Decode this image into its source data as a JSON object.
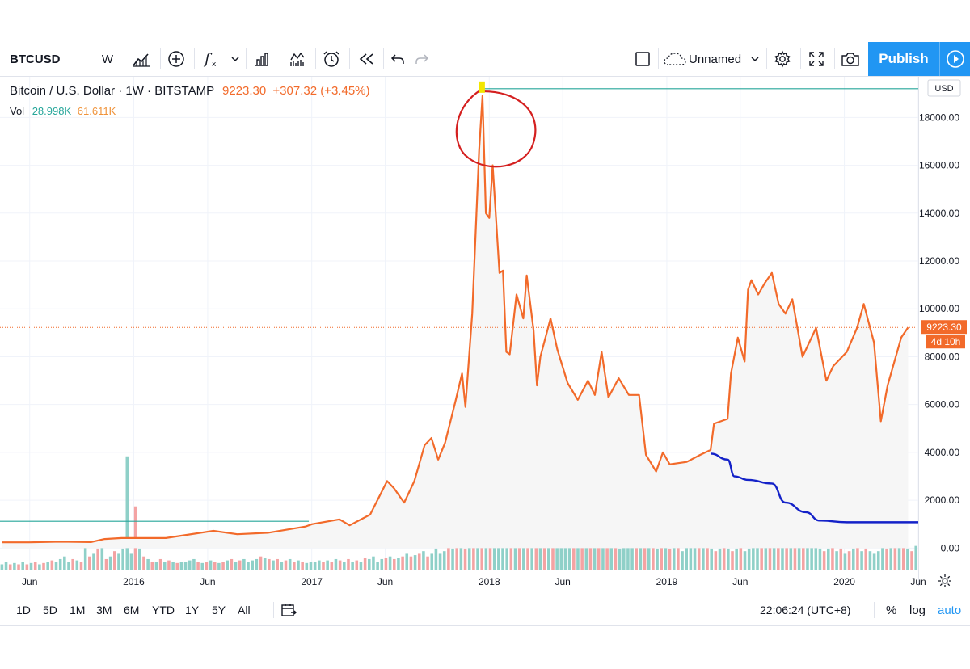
{
  "toolbar": {
    "symbol": "BTCUSD",
    "interval": "W",
    "layout_name": "Unnamed",
    "publish_label": "Publish",
    "icons": [
      "bar-style-icon",
      "add-compare-icon",
      "indicators-icon",
      "chevron-down-icon",
      "financials-icon",
      "templates-icon",
      "alert-icon",
      "replay-icon",
      "undo-icon",
      "redo-icon",
      "select-layout-icon",
      "cloud-icon",
      "settings-icon",
      "fullscreen-icon",
      "camera-icon",
      "play-icon"
    ]
  },
  "legend": {
    "title": "Bitcoin / U.S. Dollar · 1W · BITSTAMP",
    "price": "9223.30",
    "change": "+307.32 (+3.45%)",
    "vol_label": "Vol",
    "vol_ma": "28.998K",
    "vol_value": "61.611K"
  },
  "price_axis": {
    "currency": "USD",
    "ticks": [
      "18000.00",
      "16000.00",
      "14000.00",
      "12000.00",
      "10000.00",
      "8000.00",
      "6000.00",
      "4000.00",
      "2000.00",
      "0.00"
    ],
    "last_price": "9223.30",
    "countdown": "4d 10h"
  },
  "time_axis": {
    "ticks": [
      "Jun",
      "2016",
      "Jun",
      "2017",
      "Jun",
      "2018",
      "Jun",
      "2019",
      "Jun",
      "2020",
      "Jun"
    ]
  },
  "bottom": {
    "ranges": [
      "1D",
      "5D",
      "1M",
      "3M",
      "6M",
      "YTD",
      "1Y",
      "5Y",
      "All"
    ],
    "clock": "22:06:24 (UTC+8)",
    "percent": "%",
    "log": "log",
    "auto": "auto"
  },
  "colors": {
    "price_line": "#f26a2a",
    "volume_up": "#8fd0c8",
    "volume_down": "#f4a3a3",
    "teal_line": "#26a69a",
    "blue_curve": "#1422c8",
    "circle_annotation": "#d42020",
    "accent": "#2196f3"
  },
  "chart_data": {
    "type": "line",
    "title": "Bitcoin / U.S. Dollar · 1W · BITSTAMP",
    "y_unit": "USD",
    "ylim": [
      -900,
      19700
    ],
    "x_range": [
      "2015-04",
      "2020-06"
    ],
    "series": [
      {
        "name": "BTCUSD",
        "points": [
          [
            "2015-04-06",
            240
          ],
          [
            "2015-06-01",
            240
          ],
          [
            "2015-08-03",
            270
          ],
          [
            "2015-10-05",
            250
          ],
          [
            "2015-11-02",
            380
          ],
          [
            "2015-12-07",
            420
          ],
          [
            "2016-03-07",
            420
          ],
          [
            "2016-06-13",
            720
          ],
          [
            "2016-08-01",
            580
          ],
          [
            "2016-10-03",
            640
          ],
          [
            "2016-12-19",
            900
          ],
          [
            "2017-01-02",
            1000
          ],
          [
            "2017-02-27",
            1200
          ],
          [
            "2017-03-20",
            950
          ],
          [
            "2017-05-01",
            1400
          ],
          [
            "2017-06-05",
            2800
          ],
          [
            "2017-06-19",
            2500
          ],
          [
            "2017-07-10",
            1900
          ],
          [
            "2017-07-31",
            2800
          ],
          [
            "2017-08-21",
            4300
          ],
          [
            "2017-09-04",
            4600
          ],
          [
            "2017-09-18",
            3700
          ],
          [
            "2017-10-02",
            4400
          ],
          [
            "2017-10-23",
            6100
          ],
          [
            "2017-11-06",
            7300
          ],
          [
            "2017-11-13",
            5900
          ],
          [
            "2017-11-27",
            9800
          ],
          [
            "2017-12-11",
            16600
          ],
          [
            "2017-12-18",
            18900
          ],
          [
            "2017-12-25",
            14000
          ],
          [
            "2018-01-01",
            13800
          ],
          [
            "2018-01-08",
            16000
          ],
          [
            "2018-01-22",
            11500
          ],
          [
            "2018-01-29",
            11600
          ],
          [
            "2018-02-05",
            8200
          ],
          [
            "2018-02-12",
            8100
          ],
          [
            "2018-02-26",
            10600
          ],
          [
            "2018-03-12",
            9600
          ],
          [
            "2018-03-19",
            11400
          ],
          [
            "2018-04-02",
            9100
          ],
          [
            "2018-04-09",
            6800
          ],
          [
            "2018-04-16",
            8000
          ],
          [
            "2018-05-07",
            9600
          ],
          [
            "2018-05-21",
            8300
          ],
          [
            "2018-06-11",
            6900
          ],
          [
            "2018-07-02",
            6200
          ],
          [
            "2018-07-23",
            7000
          ],
          [
            "2018-08-06",
            6400
          ],
          [
            "2018-08-20",
            8200
          ],
          [
            "2018-09-03",
            6300
          ],
          [
            "2018-09-24",
            7100
          ],
          [
            "2018-10-15",
            6400
          ],
          [
            "2018-11-05",
            6400
          ],
          [
            "2018-11-19",
            3900
          ],
          [
            "2018-12-10",
            3200
          ],
          [
            "2018-12-24",
            4000
          ],
          [
            "2019-01-07",
            3500
          ],
          [
            "2019-02-11",
            3600
          ],
          [
            "2019-03-11",
            3900
          ],
          [
            "2019-04-01",
            4100
          ],
          [
            "2019-04-08",
            5200
          ],
          [
            "2019-05-06",
            5400
          ],
          [
            "2019-05-13",
            7300
          ],
          [
            "2019-05-27",
            8800
          ],
          [
            "2019-06-10",
            7800
          ],
          [
            "2019-06-17",
            10800
          ],
          [
            "2019-06-24",
            11200
          ],
          [
            "2019-07-08",
            10600
          ],
          [
            "2019-07-22",
            11100
          ],
          [
            "2019-08-05",
            11500
          ],
          [
            "2019-08-19",
            10200
          ],
          [
            "2019-09-02",
            9800
          ],
          [
            "2019-09-16",
            10400
          ],
          [
            "2019-10-07",
            8000
          ],
          [
            "2019-10-21",
            8600
          ],
          [
            "2019-11-04",
            9200
          ],
          [
            "2019-11-25",
            7000
          ],
          [
            "2019-12-09",
            7600
          ],
          [
            "2020-01-06",
            8200
          ],
          [
            "2020-01-27",
            9200
          ],
          [
            "2020-02-10",
            10200
          ],
          [
            "2020-03-02",
            8600
          ],
          [
            "2020-03-16",
            5300
          ],
          [
            "2020-03-30",
            6800
          ],
          [
            "2020-04-27",
            8800
          ],
          [
            "2020-05-11",
            9223
          ]
        ]
      }
    ],
    "volume_series": [
      {
        "name": "Vol",
        "values": [
          0.2,
          0.3,
          0.2,
          0.25,
          0.2,
          0.3,
          0.2,
          0.25,
          0.3,
          0.2,
          0.25,
          0.3,
          0.35,
          0.3,
          0.4,
          0.5,
          0.3,
          0.4,
          0.35,
          0.3,
          0.9,
          0.5,
          0.6,
          0.8,
          1.0,
          0.4,
          0.5,
          0.7,
          0.6,
          0.8,
          4.3,
          0.6,
          2.4,
          0.8,
          0.5,
          0.4,
          0.3,
          0.3,
          0.4,
          0.3,
          0.35,
          0.3,
          0.25,
          0.3,
          0.3,
          0.35,
          0.4,
          0.3,
          0.25,
          0.3,
          0.35,
          0.3,
          0.25,
          0.3,
          0.35,
          0.4,
          0.3,
          0.35,
          0.4,
          0.3,
          0.35,
          0.4,
          0.5,
          0.45,
          0.4,
          0.35,
          0.4,
          0.3,
          0.35,
          0.4,
          0.3,
          0.35,
          0.3,
          0.25,
          0.3,
          0.3,
          0.35,
          0.3,
          0.35,
          0.3,
          0.4,
          0.35,
          0.3,
          0.4,
          0.3,
          0.35,
          0.3,
          0.45,
          0.4,
          0.5,
          0.3,
          0.4,
          0.45,
          0.5,
          0.4,
          0.45,
          0.5,
          0.6,
          0.5,
          0.55,
          0.6,
          0.7,
          0.5,
          0.6,
          0.8,
          0.6,
          0.7,
          0.9,
          0.8,
          0.9,
          1.0,
          0.8,
          0.9,
          1.2,
          1.0,
          1.1,
          1.3,
          1.0,
          1.2,
          1.5,
          1.3,
          1.1,
          1.2,
          1.4,
          1.0,
          1.1,
          1.3,
          1.6,
          1.2,
          1.4,
          1.2,
          1.1,
          1.0,
          1.1,
          1.3,
          1.5,
          1.4,
          1.2,
          1.0,
          1.2,
          1.1,
          0.9,
          1.0,
          1.3,
          1.2,
          1.1,
          0.9,
          1.0,
          0.8,
          0.9,
          1.0,
          1.1,
          0.9,
          1.0,
          1.2,
          1.1,
          0.9,
          0.8,
          0.9,
          1.0,
          0.8,
          0.9,
          1.0,
          0.7,
          1.6,
          1.2,
          1.4,
          1.0,
          1.1,
          0.9,
          0.8,
          0.7,
          0.8,
          0.9,
          0.8,
          0.7,
          0.8,
          0.9,
          0.7,
          0.8,
          1.0,
          1.1,
          1.2,
          1.0,
          1.5,
          1.3,
          1.1,
          1.2,
          1.0,
          1.1,
          1.3,
          1.2,
          1.4,
          1.0,
          1.1,
          0.9,
          0.8,
          0.7,
          0.8,
          0.9,
          0.7,
          0.8,
          0.6,
          0.7,
          0.8,
          0.9,
          0.7,
          0.8,
          0.7,
          0.6,
          0.7,
          0.9,
          0.8,
          1.0,
          1.5,
          1.3,
          0.9,
          0.8,
          0.7,
          0.9
        ],
        "y_label": "Vol"
      }
    ],
    "horizontal_lines": [
      {
        "price": 19200,
        "from": "2017-12-18",
        "color": "teal"
      },
      {
        "price": 1120,
        "from": "2015-04-06",
        "to": "2016-12-26",
        "color": "teal"
      },
      {
        "price": 9223.3,
        "color": "orange",
        "style": "dotted"
      }
    ]
  }
}
